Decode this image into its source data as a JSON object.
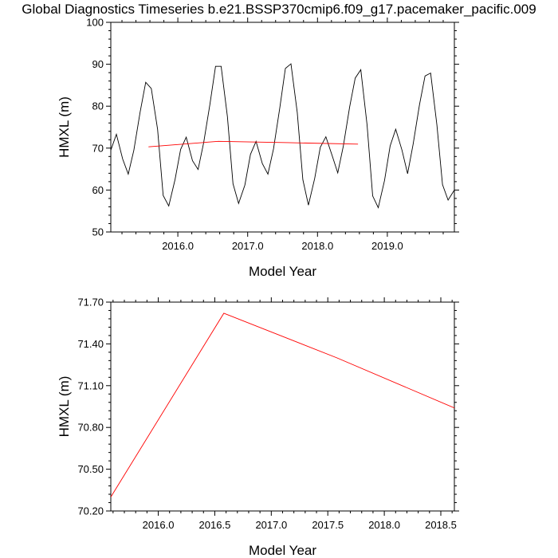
{
  "title": "Global Diagnostics Timeseries b.e21.BSSP370cmip6.f09_g17.pacemaker_pacific.009",
  "chart_data": [
    {
      "type": "line",
      "xlabel": "Model Year",
      "ylabel": "HMXL (m)",
      "xlim": [
        2015.04,
        2019.96
      ],
      "ylim": [
        50,
        100
      ],
      "xticks": [
        2016.0,
        2017.0,
        2018.0,
        2019.0
      ],
      "xtick_labels": [
        "2016.0",
        "2017.0",
        "2018.0",
        "2019.0"
      ],
      "yticks": [
        50,
        60,
        70,
        80,
        90,
        100
      ],
      "ytick_labels": [
        "50",
        "60",
        "70",
        "80",
        "90",
        "100"
      ],
      "grid": false,
      "series": [
        {
          "color": "#000000",
          "x": [
            2015.04,
            2015.12,
            2015.21,
            2015.29,
            2015.37,
            2015.46,
            2015.54,
            2015.62,
            2015.71,
            2015.79,
            2015.87,
            2015.96,
            2016.04,
            2016.12,
            2016.21,
            2016.29,
            2016.37,
            2016.46,
            2016.54,
            2016.62,
            2016.71,
            2016.79,
            2016.87,
            2016.96,
            2017.04,
            2017.12,
            2017.21,
            2017.29,
            2017.37,
            2017.46,
            2017.54,
            2017.62,
            2017.71,
            2017.79,
            2017.87,
            2017.96,
            2018.04,
            2018.12,
            2018.21,
            2018.29,
            2018.37,
            2018.46,
            2018.54,
            2018.62,
            2018.71,
            2018.79,
            2018.87,
            2018.96,
            2019.04,
            2019.12,
            2019.21,
            2019.29,
            2019.37,
            2019.46,
            2019.54,
            2019.62,
            2019.71,
            2019.79,
            2019.87,
            2019.96
          ],
          "y": [
            69.5,
            73.3,
            67.4,
            63.8,
            69.5,
            78.6,
            85.7,
            84.2,
            74.5,
            58.7,
            56.2,
            62.5,
            69.7,
            72.6,
            67.0,
            64.9,
            71.3,
            80.5,
            89.5,
            89.5,
            77.5,
            61.5,
            56.8,
            61.2,
            68.5,
            71.6,
            66.3,
            63.8,
            69.8,
            79.6,
            89.0,
            90.1,
            78.5,
            62.5,
            56.4,
            62.8,
            70.2,
            72.7,
            68.2,
            64.1,
            70.5,
            79.8,
            86.7,
            88.7,
            75.5,
            58.6,
            55.8,
            62.3,
            70.5,
            74.5,
            69.5,
            63.9,
            71.0,
            80.3,
            87.2,
            87.9,
            75.5,
            61.3,
            57.6,
            60.0
          ]
        },
        {
          "color": "#ff0000",
          "x": [
            2015.58,
            2016.58,
            2017.58,
            2018.58
          ],
          "y": [
            70.3,
            71.62,
            71.3,
            70.94
          ]
        }
      ]
    },
    {
      "type": "line",
      "xlabel": "Model Year",
      "ylabel": "HMXL (m)",
      "xlim": [
        2015.58,
        2018.62
      ],
      "ylim": [
        70.2,
        71.7
      ],
      "xticks": [
        2016.0,
        2016.5,
        2017.0,
        2017.5,
        2018.0,
        2018.5
      ],
      "xtick_labels": [
        "2016.0",
        "2016.5",
        "2017.0",
        "2017.5",
        "2018.0",
        "2018.5"
      ],
      "yticks": [
        70.2,
        70.5,
        70.8,
        71.1,
        71.4,
        71.7
      ],
      "ytick_labels": [
        "70.20",
        "70.50",
        "70.80",
        "71.10",
        "71.40",
        "71.70"
      ],
      "grid": false,
      "series": [
        {
          "color": "#ff0000",
          "x": [
            2015.58,
            2016.58,
            2017.58,
            2018.62
          ],
          "y": [
            70.3,
            71.62,
            71.3,
            70.94
          ]
        }
      ]
    }
  ]
}
